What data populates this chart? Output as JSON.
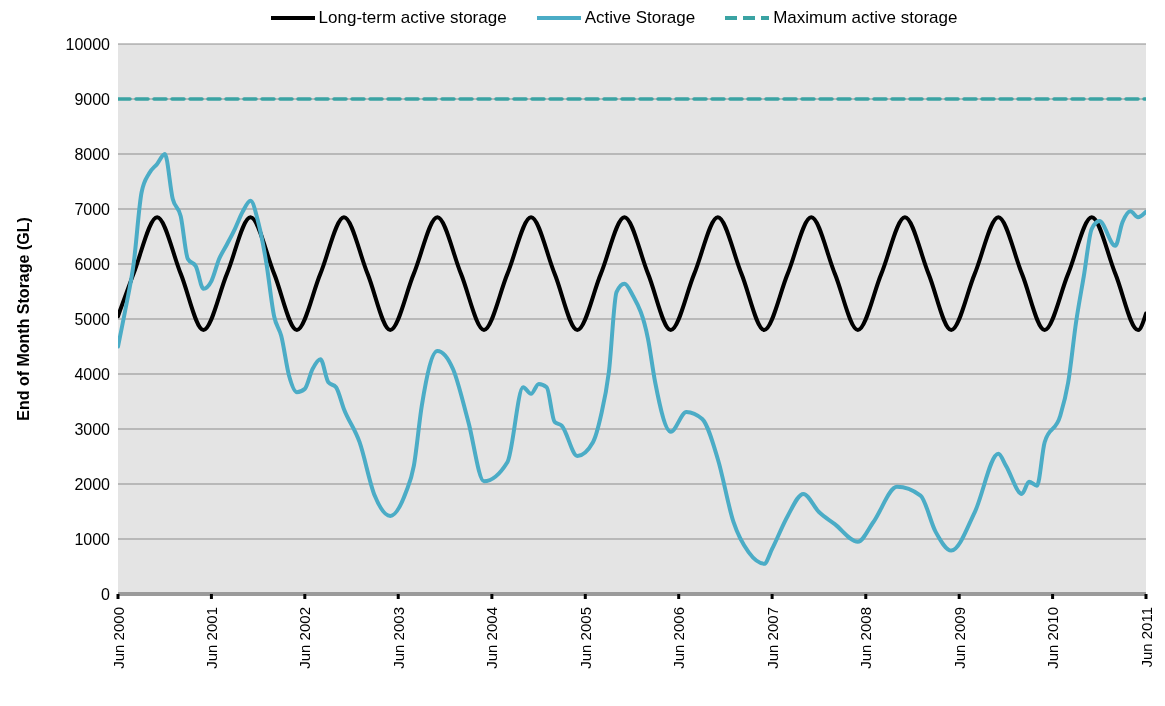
{
  "chart_data": {
    "type": "line",
    "ylabel": "End of Month Storage (GL)",
    "legend": "top",
    "grid": "y",
    "xlim": [
      "2000-06",
      "2011-06"
    ],
    "xticks": [
      {
        "value": "2000-06",
        "label": "Jun 2000"
      },
      {
        "value": "2001-06",
        "label": "Jun 2001"
      },
      {
        "value": "2002-06",
        "label": "Jun 2002"
      },
      {
        "value": "2003-06",
        "label": "Jun 2003"
      },
      {
        "value": "2004-06",
        "label": "Jun 2004"
      },
      {
        "value": "2005-06",
        "label": "Jun 2005"
      },
      {
        "value": "2006-06",
        "label": "Jun 2006"
      },
      {
        "value": "2007-06",
        "label": "Jun 2007"
      },
      {
        "value": "2008-06",
        "label": "Jun 2008"
      },
      {
        "value": "2009-06",
        "label": "Jun 2009"
      },
      {
        "value": "2010-06",
        "label": "Jun 2010"
      },
      {
        "value": "2011-06",
        "label": "Jun 2011"
      }
    ],
    "ylim": [
      0,
      10000
    ],
    "yticks": [
      0,
      1000,
      2000,
      3000,
      4000,
      5000,
      6000,
      7000,
      8000,
      9000,
      10000
    ],
    "series": [
      {
        "name": "Long-term active storage",
        "color": "#000000",
        "line_style": "solid",
        "x": [
          "2000-06",
          "2000-08",
          "2000-11",
          "2001-02",
          "2001-05",
          "2001-08",
          "2001-11",
          "2002-02",
          "2002-05",
          "2002-08",
          "2002-11",
          "2003-02",
          "2003-05",
          "2003-08",
          "2003-11",
          "2004-02",
          "2004-05",
          "2004-08",
          "2004-11",
          "2005-02",
          "2005-05",
          "2005-08",
          "2005-11",
          "2006-02",
          "2006-05",
          "2006-08",
          "2006-11",
          "2007-02",
          "2007-05",
          "2007-08",
          "2007-11",
          "2008-02",
          "2008-05",
          "2008-08",
          "2008-11",
          "2009-02",
          "2009-05",
          "2009-08",
          "2009-11",
          "2010-02",
          "2010-05",
          "2010-08",
          "2010-11",
          "2011-02",
          "2011-05",
          "2011-06"
        ],
        "values": [
          5050,
          5825,
          6850,
          5825,
          4800,
          5825,
          6850,
          5825,
          4800,
          5825,
          6850,
          5825,
          4800,
          5825,
          6850,
          5825,
          4800,
          5825,
          6850,
          5825,
          4800,
          5825,
          6850,
          5825,
          4800,
          5825,
          6850,
          5825,
          4800,
          5825,
          6850,
          5825,
          4800,
          5825,
          6850,
          5825,
          4800,
          5825,
          6850,
          5825,
          4800,
          5825,
          6850,
          5825,
          4800,
          5100
        ]
      },
      {
        "name": "Active Storage",
        "color": "#4bacc6",
        "line_style": "solid",
        "x": [
          "2000-06",
          "2000-07",
          "2000-08",
          "2000-09",
          "2000-10",
          "2000-11",
          "2000-12",
          "2001-01",
          "2001-02",
          "2001-03",
          "2001-04",
          "2001-05",
          "2001-06",
          "2001-07",
          "2001-08",
          "2001-09",
          "2001-10",
          "2001-11",
          "2001-12",
          "2002-01",
          "2002-02",
          "2002-03",
          "2002-04",
          "2002-05",
          "2002-06",
          "2002-07",
          "2002-08",
          "2002-09",
          "2002-10",
          "2002-11",
          "2003-01",
          "2003-03",
          "2003-05",
          "2003-07",
          "2003-08",
          "2003-09",
          "2003-11",
          "2004-01",
          "2004-03",
          "2004-05",
          "2004-08",
          "2004-10",
          "2004-11",
          "2004-12",
          "2005-01",
          "2005-02",
          "2005-03",
          "2005-05",
          "2005-07",
          "2005-08",
          "2005-09",
          "2005-10",
          "2005-11",
          "2005-12",
          "2006-02",
          "2006-03",
          "2006-05",
          "2006-07",
          "2006-09",
          "2006-11",
          "2007-01",
          "2007-03",
          "2007-05",
          "2007-06",
          "2007-08",
          "2007-10",
          "2007-12",
          "2008-02",
          "2008-05",
          "2008-07",
          "2008-10",
          "2009-01",
          "2009-03",
          "2009-05",
          "2009-08",
          "2009-11",
          "2009-12",
          "2010-02",
          "2010-03",
          "2010-04",
          "2010-05",
          "2010-07",
          "2010-08",
          "2010-09",
          "2010-10",
          "2010-11",
          "2010-12",
          "2011-02",
          "2011-03",
          "2011-04",
          "2011-05",
          "2011-06"
        ],
        "values": [
          4500,
          5200,
          6000,
          7300,
          7650,
          7820,
          8000,
          7180,
          6870,
          6090,
          5960,
          5550,
          5690,
          6090,
          6360,
          6640,
          6950,
          7150,
          6760,
          6040,
          5050,
          4690,
          3960,
          3670,
          3730,
          4090,
          4270,
          3850,
          3760,
          3360,
          2760,
          1790,
          1420,
          1850,
          2330,
          3420,
          4420,
          4090,
          3130,
          2050,
          2400,
          3760,
          3640,
          3820,
          3760,
          3130,
          3060,
          2510,
          2760,
          3240,
          4030,
          5490,
          5640,
          5450,
          4640,
          3850,
          2950,
          3310,
          3180,
          2450,
          1310,
          760,
          550,
          820,
          1420,
          1820,
          1490,
          1270,
          950,
          1310,
          1950,
          1790,
          1130,
          790,
          1490,
          2550,
          2330,
          1820,
          2040,
          1970,
          2760,
          3240,
          3850,
          4950,
          5780,
          6640,
          6780,
          6330,
          6760,
          6960,
          6850,
          6950
        ]
      },
      {
        "name": "Maximum active storage",
        "color": "#3aa3a3",
        "line_style": "dashed",
        "x": [
          "2000-06",
          "2011-06"
        ],
        "values": [
          9000,
          9000
        ]
      }
    ]
  }
}
